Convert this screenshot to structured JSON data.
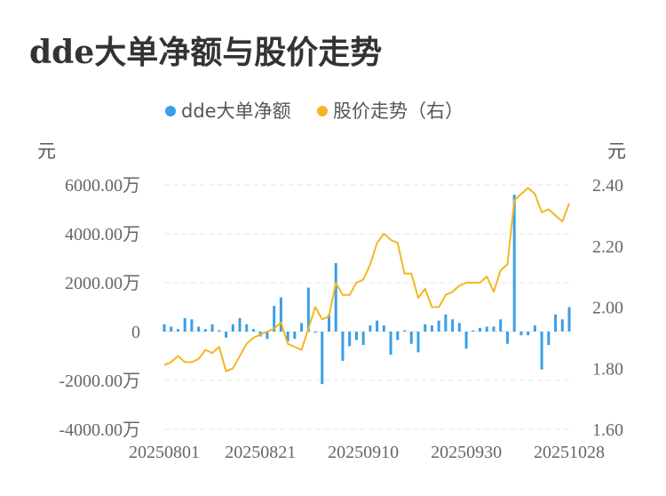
{
  "title": "dde大单净额与股价走势",
  "legend": [
    {
      "label": "dde大单净额",
      "color": "#3a9ee8"
    },
    {
      "label": "股价走势（右）",
      "color": "#f2b722"
    }
  ],
  "chart_data": {
    "type": "bar+line",
    "left_axis": {
      "unit": "元",
      "ticks": [
        "6000.00万",
        "4000.00万",
        "2000.00万",
        "0",
        "-2000.00万",
        "-4000.00万"
      ],
      "ylim": [
        -4000,
        6000
      ]
    },
    "right_axis": {
      "unit": "元",
      "ticks": [
        "2.40",
        "2.20",
        "2.00",
        "1.80",
        "1.60"
      ],
      "ylim": [
        1.6,
        2.4
      ]
    },
    "x_ticks": [
      "20250801",
      "20250821",
      "20250910",
      "20250930",
      "20251028"
    ],
    "grid": true,
    "series": [
      {
        "name": "dde大单净额",
        "type": "bar",
        "axis": "left",
        "values": [
          300,
          200,
          100,
          550,
          500,
          200,
          100,
          300,
          50,
          -250,
          300,
          550,
          300,
          100,
          -200,
          -300,
          1050,
          1400,
          -400,
          -300,
          350,
          1800,
          -50,
          -2150,
          700,
          2800,
          -1200,
          -600,
          -350,
          -550,
          250,
          450,
          250,
          -950,
          -350,
          50,
          -500,
          -850,
          300,
          250,
          450,
          700,
          500,
          350,
          -700,
          50,
          150,
          200,
          200,
          500,
          -500,
          5600,
          -150,
          -150,
          250,
          -1550,
          -550,
          700,
          500,
          1000
        ]
      },
      {
        "name": "股价走势（右）",
        "type": "line",
        "axis": "right",
        "values": [
          1.81,
          1.82,
          1.84,
          1.82,
          1.82,
          1.83,
          1.86,
          1.85,
          1.87,
          1.79,
          1.8,
          1.84,
          1.88,
          1.9,
          1.91,
          1.92,
          1.93,
          1.95,
          1.88,
          1.87,
          1.86,
          1.93,
          2.0,
          1.96,
          1.97,
          2.08,
          2.04,
          2.04,
          2.08,
          2.09,
          2.14,
          2.21,
          2.24,
          2.22,
          2.21,
          2.11,
          2.11,
          2.03,
          2.06,
          2.0,
          2.0,
          2.04,
          2.05,
          2.07,
          2.08,
          2.08,
          2.08,
          2.1,
          2.05,
          2.12,
          2.14,
          2.35,
          2.37,
          2.39,
          2.37,
          2.31,
          2.32,
          2.3,
          2.28,
          2.34
        ]
      }
    ]
  }
}
